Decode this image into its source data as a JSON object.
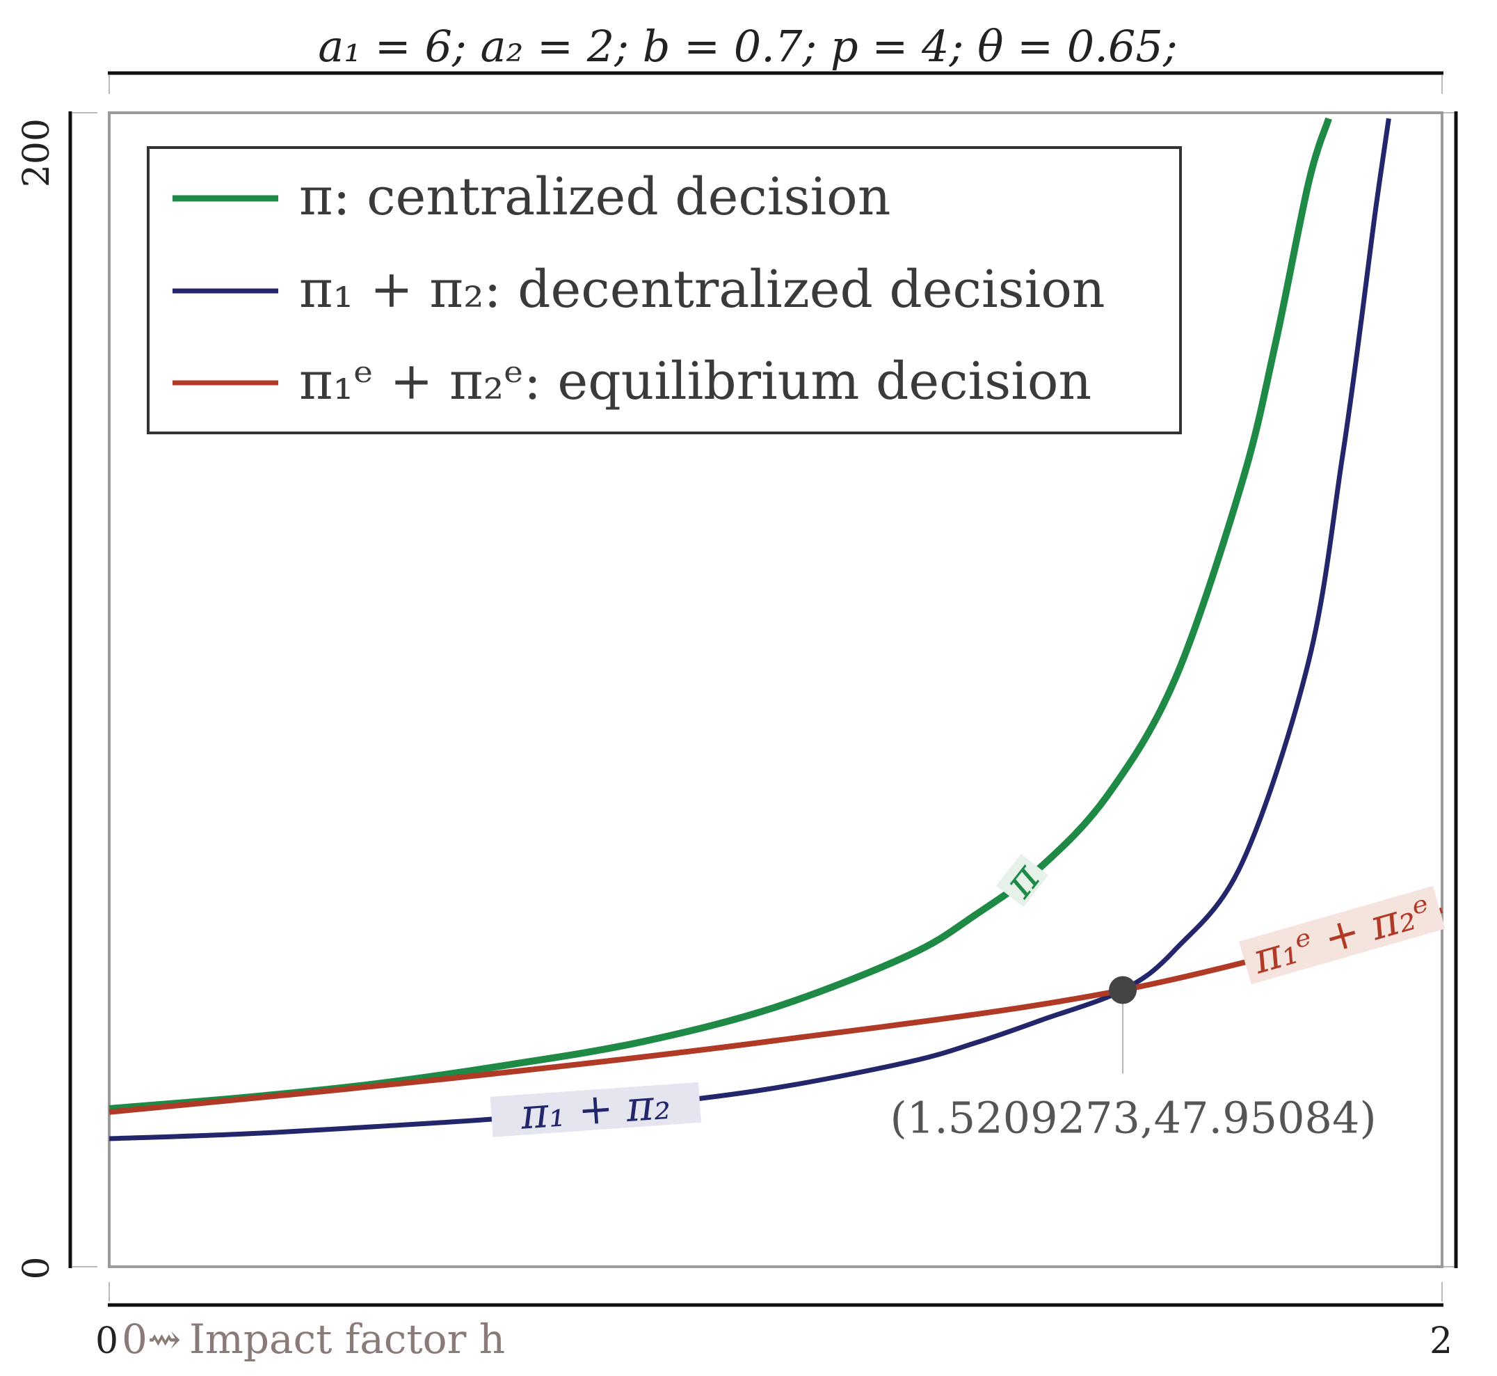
{
  "chart_data": {
    "type": "line",
    "title": "a₁ = 6; a₂ = 2; b = 0.7; p = 4; θ = 0.65;",
    "xlabel": "Impact factor h",
    "xlabel_prefix": "0⇝",
    "ylabel": "",
    "xlim": [
      0,
      2
    ],
    "ylim": [
      0,
      200
    ],
    "x_ticks": [
      "0",
      "2"
    ],
    "y_ticks": [
      "0",
      "200"
    ],
    "grid": false,
    "legend_position": "top-left",
    "series": [
      {
        "key": "pi",
        "name": "π: centralized decision",
        "inline_label": "π",
        "color": "#1e8a46",
        "x": [
          0.0,
          0.2,
          0.4,
          0.6,
          0.8,
          1.0,
          1.2,
          1.3,
          1.4,
          1.5,
          1.6,
          1.7,
          1.75,
          1.8,
          1.83
        ],
        "y": [
          27.4,
          29.3,
          31.7,
          35.0,
          39.0,
          45.0,
          54.0,
          61.0,
          69.5,
          82.0,
          102.0,
          136.0,
          160.0,
          188.0,
          199.0
        ]
      },
      {
        "key": "pi12",
        "name": "π₁ + π₂: decentralized decision",
        "inline_label": "π₁ + π₂",
        "color": "#23266a",
        "x": [
          0.0,
          0.2,
          0.4,
          0.6,
          0.8,
          1.0,
          1.2,
          1.3,
          1.4,
          1.5209273,
          1.6,
          1.7,
          1.8,
          1.85,
          1.88,
          1.9,
          1.92
        ],
        "y": [
          22.2,
          23.0,
          24.3,
          25.8,
          28.0,
          31.0,
          35.5,
          38.8,
          42.8,
          47.95084,
          55.0,
          70.0,
          105.0,
          140.0,
          165.0,
          183.0,
          199.0
        ]
      },
      {
        "key": "pie",
        "name": "π₁ᵉ + π₂ᵉ: equilibrium decision",
        "inline_label": "π₁ᵉ + π₂ᵉ",
        "color": "#b03a26",
        "x": [
          0.0,
          0.5,
          1.0,
          1.5209273,
          2.0
        ],
        "y": [
          26.8,
          32.5,
          39.2,
          47.95084,
          61.8
        ]
      }
    ],
    "annotations": [
      {
        "text": "(1.5209273,47.95084)",
        "x": 1.5209273,
        "y": 47.95084
      }
    ]
  }
}
